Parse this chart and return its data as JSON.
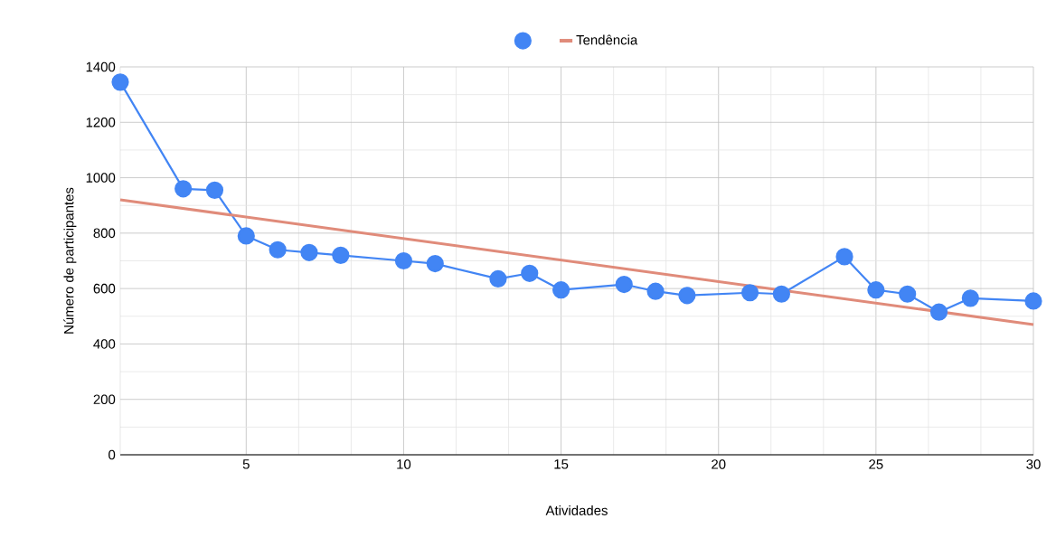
{
  "chart_data": {
    "type": "line",
    "xlabel": "Atividades",
    "ylabel": "Número de participantes",
    "xlim": [
      1,
      30
    ],
    "xticks": [
      5,
      10,
      15,
      20,
      25,
      30
    ],
    "ylim": [
      0,
      1400
    ],
    "yticks": [
      0,
      200,
      400,
      600,
      800,
      1000,
      1200,
      1400
    ],
    "grid": true,
    "legend": "top",
    "series": [
      {
        "color": "#4285f4",
        "marker": "circle",
        "x": [
          1,
          3,
          4,
          5,
          6,
          7,
          8,
          10,
          11,
          13,
          14,
          15,
          17,
          18,
          19,
          21,
          22,
          24,
          25,
          26,
          27,
          28,
          30
        ],
        "values": [
          1345,
          960,
          955,
          790,
          740,
          730,
          720,
          700,
          690,
          635,
          655,
          595,
          615,
          590,
          575,
          585,
          580,
          715,
          595,
          580,
          515,
          565,
          555
        ]
      },
      {
        "name": "Tendência",
        "color": "#e08b7a",
        "marker": "none",
        "x": [
          1,
          30
        ],
        "values": [
          920,
          470
        ]
      }
    ]
  }
}
